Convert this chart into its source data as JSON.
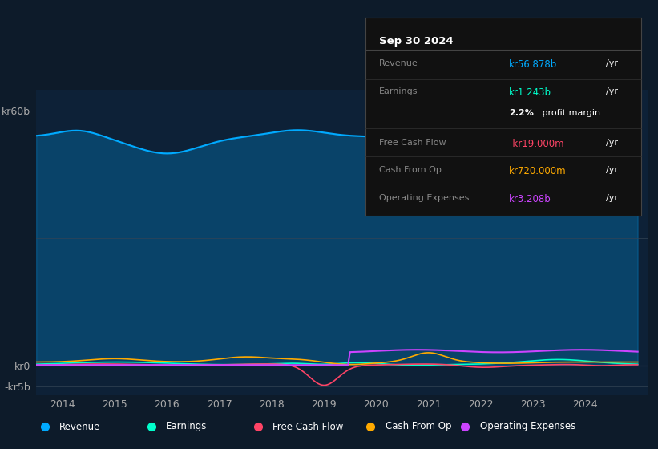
{
  "bg_color": "#0d1b2a",
  "plot_bg_color": "#0d2137",
  "years": [
    2014,
    2015,
    2016,
    2017,
    2018,
    2019,
    2020,
    2021,
    2022,
    2023,
    2024
  ],
  "revenue_color": "#00aaff",
  "earnings_color": "#00ffcc",
  "fcf_color": "#ff4466",
  "cashop_color": "#ffaa00",
  "opex_color": "#cc44ff",
  "legend_items": [
    "Revenue",
    "Earnings",
    "Free Cash Flow",
    "Cash From Op",
    "Operating Expenses"
  ],
  "tooltip_bg": "#111111",
  "tooltip_border": "#444444",
  "tooltip": {
    "date": "Sep 30 2024",
    "revenue_label": "Revenue",
    "revenue_value": "kr56.878b",
    "revenue_unit": "/yr",
    "earnings_label": "Earnings",
    "earnings_value": "kr1.243b",
    "earnings_unit": "/yr",
    "margin_label": "2.2%",
    "margin_text": " profit margin",
    "fcf_label": "Free Cash Flow",
    "fcf_value": "-kr19.000m",
    "fcf_unit": "/yr",
    "cashop_label": "Cash From Op",
    "cashop_value": "kr720.000m",
    "cashop_unit": "/yr",
    "opex_label": "Operating Expenses",
    "opex_value": "kr3.208b",
    "opex_unit": "/yr"
  }
}
